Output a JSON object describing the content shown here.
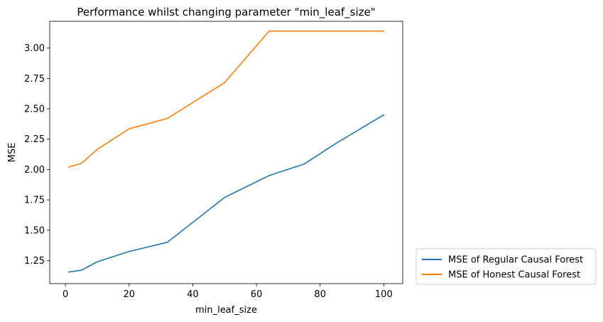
{
  "chart_data": {
    "type": "line",
    "title": "Performance whilst changing parameter \"min_leaf_size\"",
    "xlabel": "min_leaf_size",
    "ylabel": "MSE",
    "xlim": [
      -4.95,
      105.95
    ],
    "ylim": [
      1.06,
      3.22
    ],
    "xticks": [
      0,
      20,
      40,
      60,
      80,
      100
    ],
    "xtick_labels": [
      "0",
      "20",
      "40",
      "60",
      "80",
      "100"
    ],
    "yticks": [
      1.25,
      1.5,
      1.75,
      2.0,
      2.25,
      2.5,
      2.75,
      3.0
    ],
    "ytick_labels": [
      "1.25",
      "1.50",
      "1.75",
      "2.00",
      "2.25",
      "2.50",
      "2.75",
      "3.00"
    ],
    "grid": false,
    "legend_position": "outside-lower-right",
    "series": [
      {
        "name": "MSE of Regular Causal Forest",
        "color": "#1f77b4",
        "x": [
          1,
          5,
          10,
          20,
          32,
          50,
          64,
          75,
          85,
          100
        ],
        "y": [
          1.155,
          1.17,
          1.24,
          1.325,
          1.4,
          1.77,
          1.95,
          2.045,
          2.215,
          2.45
        ]
      },
      {
        "name": "MSE of Honest Causal Forest",
        "color": "#ff7f0e",
        "x": [
          1,
          5,
          10,
          20,
          32,
          50,
          64,
          75,
          85,
          100
        ],
        "y": [
          2.02,
          2.05,
          2.165,
          2.335,
          2.42,
          2.715,
          3.14,
          3.14,
          3.14,
          3.14
        ]
      }
    ]
  }
}
